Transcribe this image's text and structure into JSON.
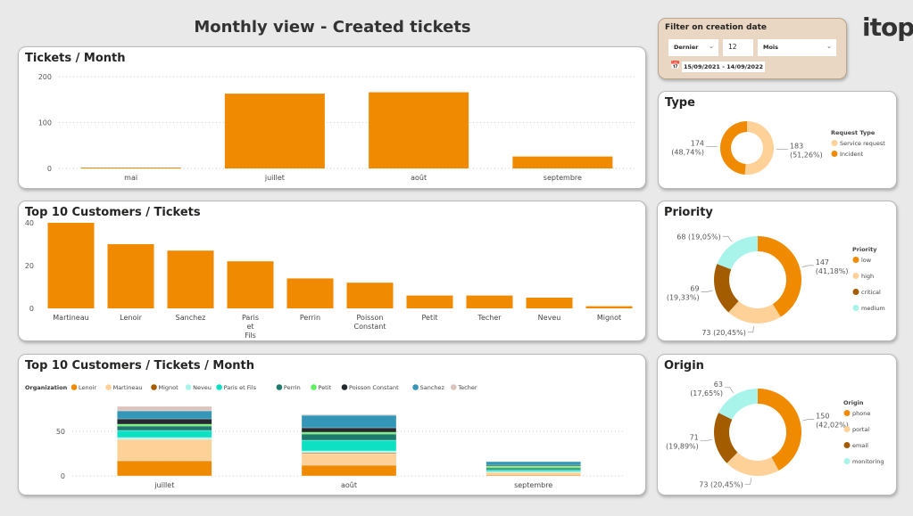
{
  "header": {
    "title": "Monthly view - Created tickets",
    "logo": "itop"
  },
  "filter": {
    "title": "Filter on creation date",
    "relative": "Dernier",
    "count": "12",
    "unit": "Mois",
    "range": "15/09/2021 - 14/09/2022",
    "icon": "calendar-icon"
  },
  "colors": {
    "accent": "#f08a00",
    "grid": "#cfcfcf"
  },
  "chart_data": [
    {
      "id": "tickets_month",
      "type": "bar",
      "title": "Tickets / Month",
      "categories": [
        "mai",
        "juillet",
        "août",
        "septembre"
      ],
      "values": [
        2,
        163,
        166,
        26
      ],
      "yticks": [
        "0",
        "100",
        "200"
      ],
      "ylim": [
        0,
        200
      ],
      "grid": true
    },
    {
      "id": "top10",
      "type": "bar",
      "title": "Top 10 Customers / Tickets",
      "categories": [
        "Martineau",
        "Lenoir",
        "Sanchez",
        "Paris et Fils",
        "Perrin",
        "Poisson Constant",
        "Petit",
        "Techer",
        "Neveu",
        "Mignot"
      ],
      "values": [
        40,
        30,
        27,
        22,
        14,
        12,
        6,
        6,
        5,
        1
      ],
      "yticks": [
        "0",
        "20",
        "40"
      ],
      "ylim": [
        0,
        45
      ],
      "grid": false
    },
    {
      "id": "top10_month",
      "type": "bar",
      "stacked": true,
      "title": "Top 10 Customers / Tickets / Month",
      "legend_title": "Organization",
      "legend_position": "top-left",
      "categories": [
        "juillet",
        "août",
        "septembre"
      ],
      "yticks": [
        "0",
        "50"
      ],
      "ylim": [
        0,
        85
      ],
      "grid": true,
      "series": [
        {
          "name": "Lenoir",
          "color": "#f08a00",
          "values": [
            17,
            12,
            1
          ]
        },
        {
          "name": "Martineau",
          "color": "#fdd197",
          "values": [
            24,
            13,
            3
          ]
        },
        {
          "name": "Mignot",
          "color": "#a45c00",
          "values": [
            0,
            1,
            0
          ]
        },
        {
          "name": "Neveu",
          "color": "#a9f4ea",
          "values": [
            2,
            2,
            1
          ]
        },
        {
          "name": "Paris et Fils",
          "color": "#0ee0c4",
          "values": [
            8,
            12,
            2
          ]
        },
        {
          "name": "Perrin",
          "color": "#1d7a6c",
          "values": [
            5,
            7,
            2
          ]
        },
        {
          "name": "Petit",
          "color": "#5ef05e",
          "values": [
            2,
            2,
            2
          ]
        },
        {
          "name": "Poisson Constant",
          "color": "#232a30",
          "values": [
            6,
            5,
            1
          ]
        },
        {
          "name": "Sanchez",
          "color": "#3597b8",
          "values": [
            9,
            14,
            4
          ]
        },
        {
          "name": "Techer",
          "color": "#dcc3bc",
          "values": [
            5,
            1,
            0
          ]
        }
      ]
    },
    {
      "id": "type",
      "type": "pie",
      "donut": true,
      "title": "Type",
      "legend_title": "Request Type",
      "slices": [
        {
          "name": "Service request",
          "value": 183,
          "label": "183",
          "pct": "(51,26%)",
          "color": "#fdd197"
        },
        {
          "name": "Incident",
          "value": 174,
          "label": "174",
          "pct": "(48,74%)",
          "color": "#f08a00"
        }
      ]
    },
    {
      "id": "priority",
      "type": "pie",
      "donut": true,
      "title": "Priority",
      "legend_title": "Priority",
      "slices": [
        {
          "name": "low",
          "value": 147,
          "label": "147",
          "pct": "(41,18%)",
          "color": "#f08a00"
        },
        {
          "name": "high",
          "value": 73,
          "label": "73 (20,45%)",
          "pct": "",
          "color": "#fdd197"
        },
        {
          "name": "critical",
          "value": 69,
          "label": "69",
          "pct": "(19,33%)",
          "color": "#a45c00"
        },
        {
          "name": "medium",
          "value": 68,
          "label": "68 (19,05%)",
          "pct": "",
          "color": "#a9f4ea"
        }
      ]
    },
    {
      "id": "origin",
      "type": "pie",
      "donut": true,
      "title": "Origin",
      "legend_title": "Origin",
      "slices": [
        {
          "name": "phone",
          "value": 150,
          "label": "150",
          "pct": "(42,02%)",
          "color": "#f08a00"
        },
        {
          "name": "portal",
          "value": 73,
          "label": "73 (20,45%)",
          "pct": "",
          "color": "#fdd197"
        },
        {
          "name": "email",
          "value": 71,
          "label": "71",
          "pct": "(19,89%)",
          "color": "#a45c00"
        },
        {
          "name": "monitoring",
          "value": 63,
          "label": "63",
          "pct": "(17,65%)",
          "color": "#a9f4ea"
        }
      ]
    }
  ]
}
